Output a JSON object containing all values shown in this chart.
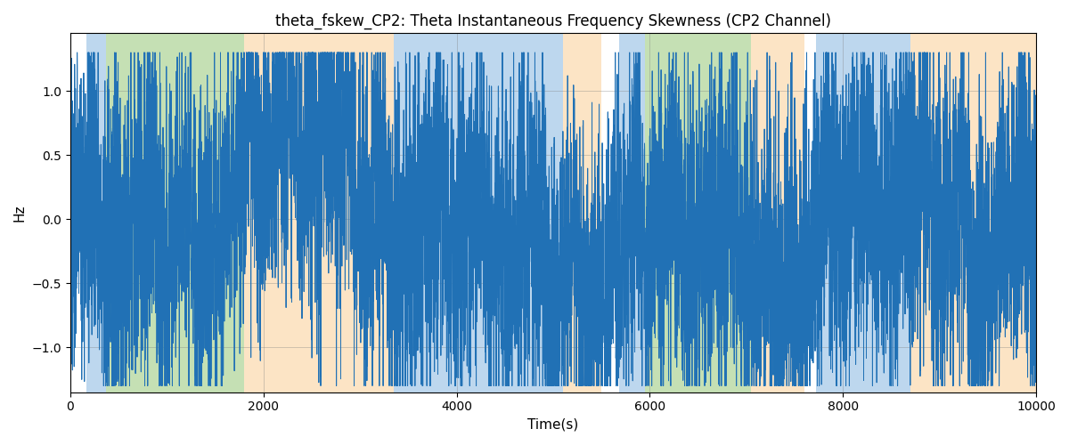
{
  "title": "theta_fskew_CP2: Theta Instantaneous Frequency Skewness (CP2 Channel)",
  "xlabel": "Time(s)",
  "ylabel": "Hz",
  "xlim": [
    0,
    10000
  ],
  "ylim": [
    -1.35,
    1.45
  ],
  "line_color": "#2171b5",
  "line_width": 0.7,
  "bg_regions": [
    {
      "xstart": 170,
      "xend": 370,
      "color": "#bdd7ee"
    },
    {
      "xstart": 370,
      "xend": 1800,
      "color": "#c5e0b4"
    },
    {
      "xstart": 1800,
      "xend": 3350,
      "color": "#fce4c5"
    },
    {
      "xstart": 3350,
      "xend": 5100,
      "color": "#bdd7ee"
    },
    {
      "xstart": 5100,
      "xend": 5500,
      "color": "#fce4c5"
    },
    {
      "xstart": 5680,
      "xend": 5950,
      "color": "#bdd7ee"
    },
    {
      "xstart": 5950,
      "xend": 7050,
      "color": "#c5e0b4"
    },
    {
      "xstart": 7050,
      "xend": 7600,
      "color": "#fce4c5"
    },
    {
      "xstart": 7720,
      "xend": 8700,
      "color": "#bdd7ee"
    },
    {
      "xstart": 8700,
      "xend": 10000,
      "color": "#fce4c5"
    }
  ],
  "grid": true,
  "yticks": [
    -1.0,
    -0.5,
    0.0,
    0.5,
    1.0
  ],
  "xticks": [
    0,
    2000,
    4000,
    6000,
    8000,
    10000
  ],
  "n_points": 8000,
  "seed": 137
}
